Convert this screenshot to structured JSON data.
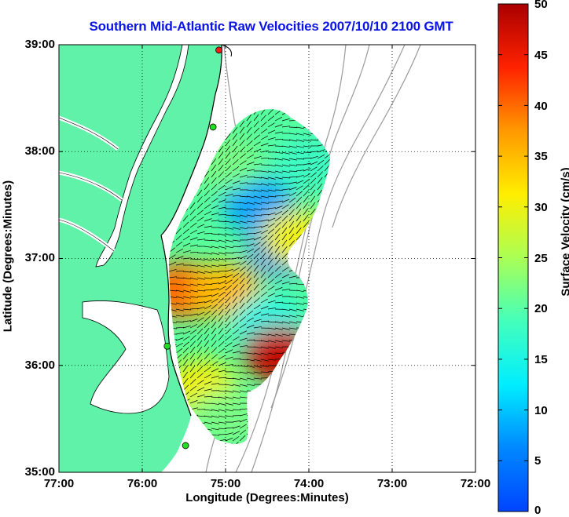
{
  "title": "Southern Mid-Atlantic Raw Velocities 2007/10/10 2100 GMT",
  "axes": {
    "xlabel": "Longitude (Degrees:Minutes)",
    "ylabel": "Latitude (Degrees:Minutes)",
    "xticks": [
      "77:00",
      "76:00",
      "75:00",
      "74:00",
      "73:00",
      "72:00"
    ],
    "yticks": [
      "39:00",
      "38:00",
      "37:00",
      "36:00",
      "35:00"
    ],
    "xlim": [
      -77,
      -72
    ],
    "ylim": [
      35,
      39
    ],
    "grid": "dotted"
  },
  "colorbar": {
    "label": "Surface Velocity (cm/s)",
    "ticks": [
      "50",
      "45",
      "40",
      "35",
      "30",
      "25",
      "20",
      "15",
      "10",
      "5",
      "0"
    ],
    "range": [
      0,
      50
    ],
    "colormap": "jet",
    "placement": "right"
  },
  "colors": {
    "title": "#0a14e6",
    "land": "#5ff2a8",
    "coastline": "#000000",
    "bathymetry": "#9a9a9a",
    "station_marker": "#22dd22",
    "station_marker_red": "#ff1a1a"
  },
  "chart_data": {
    "type": "heatmap",
    "title": "Southern Mid-Atlantic Raw Velocities 2007/10/10 2100 GMT",
    "xlabel": "Longitude (Degrees:Minutes)",
    "ylabel": "Latitude (Degrees:Minutes)",
    "colorbar_label": "Surface Velocity (cm/s)",
    "xlim": [
      -77,
      -72
    ],
    "ylim": [
      35,
      39
    ],
    "clim": [
      0,
      50
    ],
    "regions": [
      {
        "lon": -74.6,
        "lat": 37.5,
        "speed": 8
      },
      {
        "lon": -74.3,
        "lat": 37.1,
        "speed": 6
      },
      {
        "lon": -75.0,
        "lat": 37.9,
        "speed": 22
      },
      {
        "lon": -75.5,
        "lat": 36.7,
        "speed": 40
      },
      {
        "lon": -75.0,
        "lat": 36.7,
        "speed": 35
      },
      {
        "lon": -74.5,
        "lat": 36.4,
        "speed": 15
      },
      {
        "lon": -74.35,
        "lat": 36.1,
        "speed": 48
      },
      {
        "lon": -75.3,
        "lat": 35.8,
        "speed": 30
      },
      {
        "lon": -75.0,
        "lat": 35.5,
        "speed": 22
      },
      {
        "lon": -74.15,
        "lat": 37.2,
        "speed": 30
      },
      {
        "lon": -74.0,
        "lat": 37.9,
        "speed": 18
      }
    ],
    "stations": [
      {
        "lon": -75.08,
        "lat": 38.95,
        "color": "red"
      },
      {
        "lon": -75.15,
        "lat": 38.23,
        "color": "green"
      },
      {
        "lon": -75.7,
        "lat": 36.18,
        "color": "green"
      },
      {
        "lon": -75.48,
        "lat": 35.25,
        "color": "green"
      }
    ]
  }
}
